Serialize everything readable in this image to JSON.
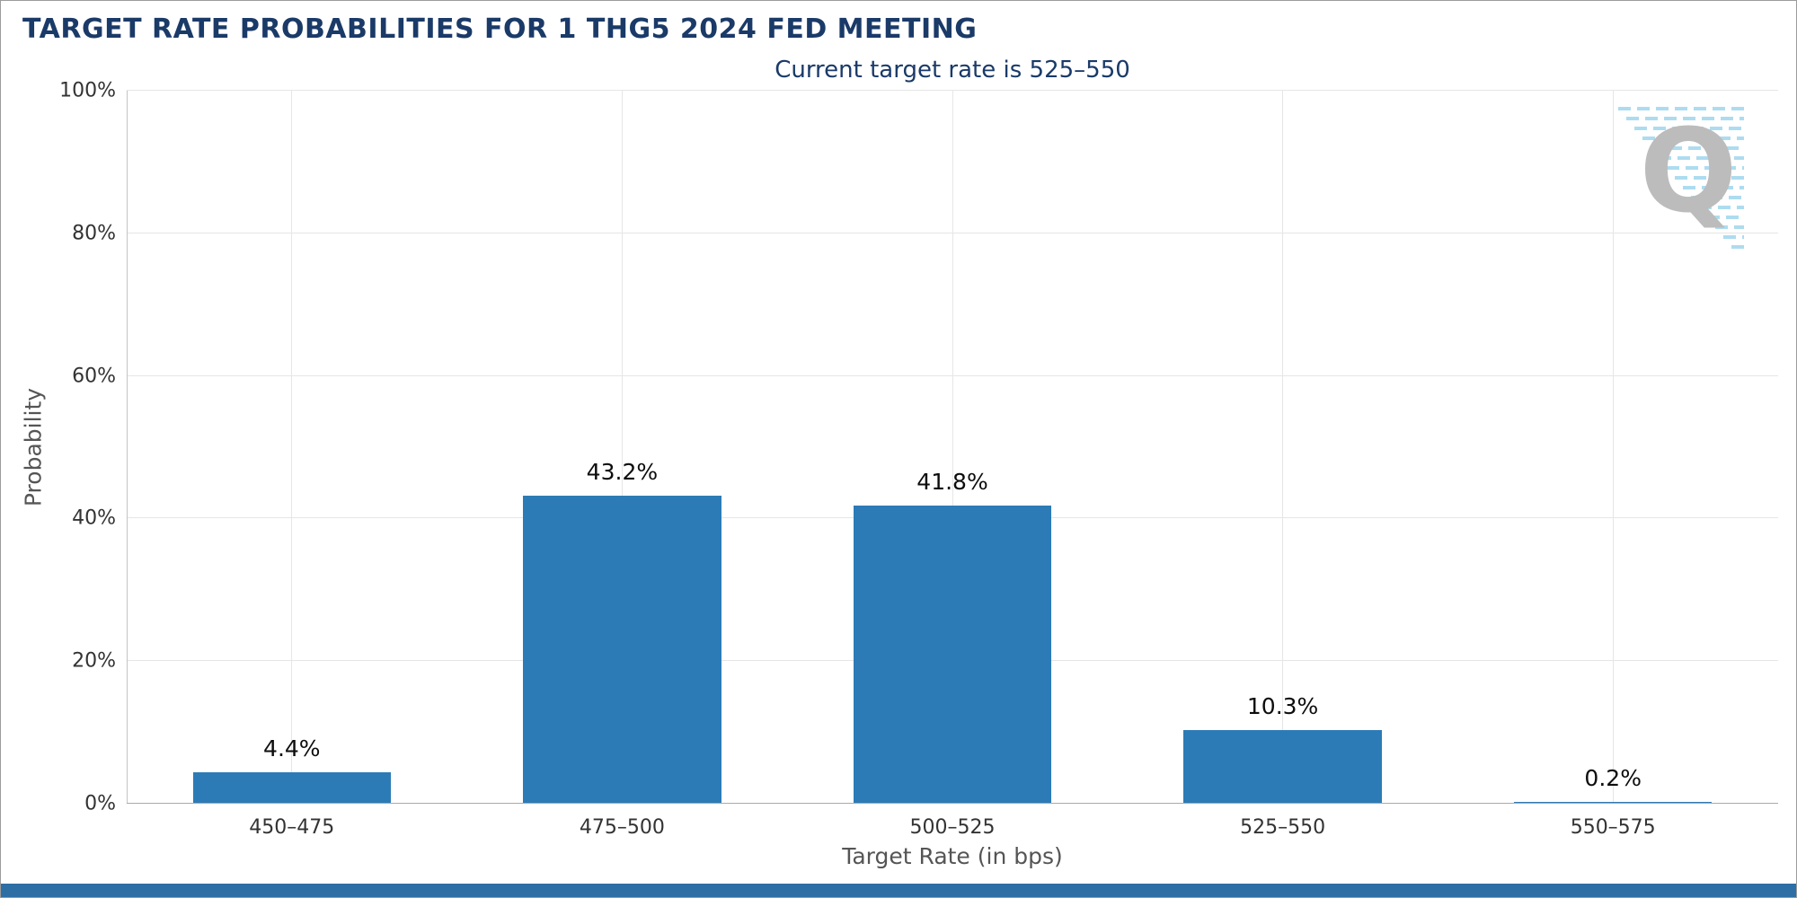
{
  "header": {
    "title": "TARGET RATE PROBABILITIES FOR 1 THG5 2024 FED MEETING"
  },
  "colors": {
    "bar": "#2c7bb6",
    "title": "#1a3a68",
    "grid": "#e6e6e6",
    "footer": "#2d6ea4",
    "watermark_letter": "#b5b5b5",
    "watermark_stripes": "#a5d9ef"
  },
  "watermark": {
    "letter": "Q"
  },
  "chart_data": {
    "type": "bar",
    "title": "Current target rate is 525–550",
    "categories": [
      "450–475",
      "475–500",
      "500–525",
      "525–550",
      "550–575"
    ],
    "values": [
      4.4,
      43.2,
      41.8,
      10.3,
      0.2
    ],
    "value_labels": [
      "4.4%",
      "43.2%",
      "41.8%",
      "10.3%",
      "0.2%"
    ],
    "xlabel": "Target Rate (in bps)",
    "ylabel": "Probability",
    "ylim": [
      0,
      100
    ],
    "yticks": [
      0,
      20,
      40,
      60,
      80,
      100
    ],
    "ytick_labels": [
      "0%",
      "20%",
      "40%",
      "60%",
      "80%",
      "100%"
    ],
    "grid": true,
    "legend": false,
    "bar_width_fraction": 0.6
  }
}
